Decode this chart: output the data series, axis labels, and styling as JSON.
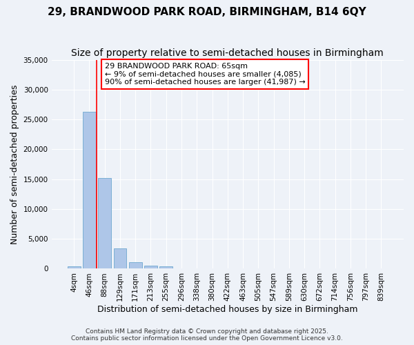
{
  "title": "29, BRANDWOOD PARK ROAD, BIRMINGHAM, B14 6QY",
  "subtitle": "Size of property relative to semi-detached houses in Birmingham",
  "xlabel": "Distribution of semi-detached houses by size in Birmingham",
  "ylabel": "Number of semi-detached properties",
  "bin_labels": [
    "4sqm",
    "46sqm",
    "88sqm",
    "129sqm",
    "171sqm",
    "213sqm",
    "255sqm",
    "296sqm",
    "338sqm",
    "380sqm",
    "422sqm",
    "463sqm",
    "505sqm",
    "547sqm",
    "589sqm",
    "630sqm",
    "672sqm",
    "714sqm",
    "756sqm",
    "797sqm",
    "839sqm"
  ],
  "bar_values": [
    350,
    26300,
    15200,
    3400,
    1100,
    550,
    350,
    80,
    30,
    10,
    5,
    3,
    2,
    1,
    1,
    0,
    0,
    0,
    0,
    0,
    0
  ],
  "bar_color": "#aec6e8",
  "bar_edgecolor": "#7bafd4",
  "property_line_x": 1.47,
  "annotation_text": "29 BRANDWOOD PARK ROAD: 65sqm\n← 9% of semi-detached houses are smaller (4,085)\n90% of semi-detached houses are larger (41,987) →",
  "ylim": [
    0,
    35000
  ],
  "yticks": [
    0,
    5000,
    10000,
    15000,
    20000,
    25000,
    30000,
    35000
  ],
  "bg_color": "#eef2f8",
  "plot_bg_color": "#eef2f8",
  "grid_color": "#ffffff",
  "footnote": "Contains HM Land Registry data © Crown copyright and database right 2025.\nContains public sector information licensed under the Open Government Licence v3.0.",
  "title_fontsize": 11,
  "subtitle_fontsize": 10,
  "axis_label_fontsize": 9,
  "tick_fontsize": 7.5,
  "annotation_fontsize": 8
}
